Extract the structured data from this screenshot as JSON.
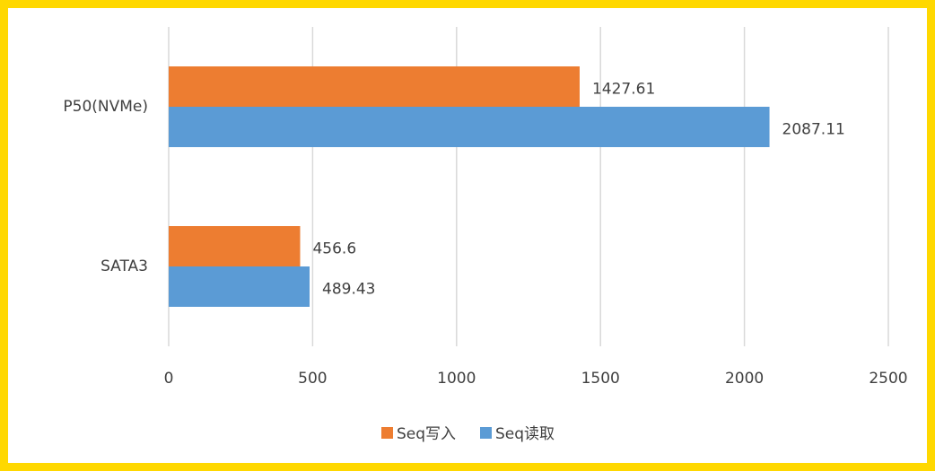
{
  "chart_data": {
    "type": "hbar",
    "categories": [
      "P50(NVMe)",
      "SATA3"
    ],
    "series": [
      {
        "name": "Seq写入",
        "color": "#ed7d31",
        "values": [
          1427.61,
          456.6
        ]
      },
      {
        "name": "Seq读取",
        "color": "#5b9bd5",
        "values": [
          2087.11,
          489.43
        ]
      }
    ],
    "xlim": [
      0,
      2500
    ],
    "xticks": [
      0,
      500,
      1000,
      1500,
      2000,
      2500
    ],
    "grid": true
  }
}
